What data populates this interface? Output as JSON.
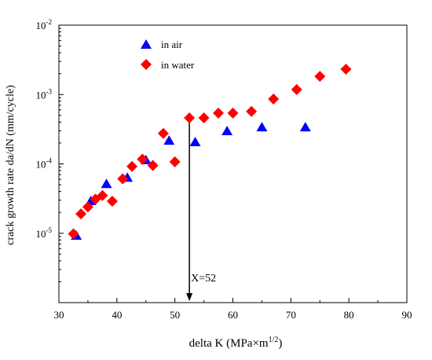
{
  "chart_data": {
    "type": "scatter",
    "xlabel": "delta K (MPa×m",
    "xlabel_sup": "1/2",
    "xlabel_tail": ")",
    "ylabel": "crack growth rate da/dN (mm/cycle)",
    "xlim": [
      30,
      90
    ],
    "ylim": [
      1e-06,
      0.01
    ],
    "yscale": "log",
    "x_ticks": [
      "30",
      "40",
      "50",
      "60",
      "70",
      "80",
      "90"
    ],
    "y_ticks": [
      {
        "value": 1e-05,
        "base": "10",
        "exp": "-5"
      },
      {
        "value": 0.0001,
        "base": "10",
        "exp": "-4"
      },
      {
        "value": 0.001,
        "base": "10",
        "exp": "-3"
      },
      {
        "value": 0.01,
        "base": "10",
        "exp": "-2"
      }
    ],
    "grid": false,
    "legend_position": "top-left",
    "series": [
      {
        "name": "in air",
        "marker": "triangle",
        "color": "#0000ff",
        "points": [
          {
            "x": 33.0,
            "y": 9.2e-06
          },
          {
            "x": 35.5,
            "y": 2.9e-05
          },
          {
            "x": 38.2,
            "y": 5.1e-05
          },
          {
            "x": 41.8,
            "y": 6.3e-05
          },
          {
            "x": 45.0,
            "y": 0.000113
          },
          {
            "x": 49.0,
            "y": 0.000215
          },
          {
            "x": 53.5,
            "y": 0.000205
          },
          {
            "x": 59.0,
            "y": 0.000295
          },
          {
            "x": 65.0,
            "y": 0.000335
          },
          {
            "x": 72.5,
            "y": 0.000335
          }
        ]
      },
      {
        "name": "in water",
        "marker": "diamond",
        "color": "#ff0000",
        "points": [
          {
            "x": 32.5,
            "y": 9.8e-06
          },
          {
            "x": 33.8,
            "y": 1.9e-05
          },
          {
            "x": 35.0,
            "y": 2.4e-05
          },
          {
            "x": 36.3,
            "y": 3.1e-05
          },
          {
            "x": 37.5,
            "y": 3.5e-05
          },
          {
            "x": 39.2,
            "y": 2.9e-05
          },
          {
            "x": 41.0,
            "y": 6.1e-05
          },
          {
            "x": 42.6,
            "y": 9.2e-05
          },
          {
            "x": 44.4,
            "y": 0.000117
          },
          {
            "x": 46.2,
            "y": 9.5e-05
          },
          {
            "x": 48.0,
            "y": 0.000275
          },
          {
            "x": 50.0,
            "y": 0.000107
          },
          {
            "x": 52.5,
            "y": 0.00046
          },
          {
            "x": 55.0,
            "y": 0.00046
          },
          {
            "x": 57.5,
            "y": 0.00054
          },
          {
            "x": 60.0,
            "y": 0.00054
          },
          {
            "x": 63.2,
            "y": 0.00057
          },
          {
            "x": 67.0,
            "y": 0.00086
          },
          {
            "x": 71.0,
            "y": 0.00118
          },
          {
            "x": 75.0,
            "y": 0.00183
          },
          {
            "x": 79.5,
            "y": 0.00232
          }
        ]
      }
    ],
    "annotations": [
      {
        "text": "X=52",
        "x": 52.5,
        "y_from": 0.00046,
        "y_to": 1e-06,
        "type": "arrow"
      }
    ]
  }
}
